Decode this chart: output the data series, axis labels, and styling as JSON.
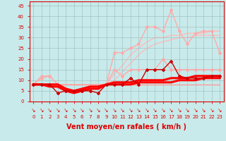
{
  "xlabel": "Vent moyen/en rafales ( km/h )",
  "x": [
    0,
    1,
    2,
    3,
    4,
    5,
    6,
    7,
    8,
    9,
    10,
    11,
    12,
    13,
    14,
    15,
    16,
    17,
    18,
    19,
    20,
    21,
    22,
    23
  ],
  "ylim": [
    0,
    47
  ],
  "yticks": [
    0,
    5,
    10,
    15,
    20,
    25,
    30,
    35,
    40,
    45
  ],
  "bg_color": "#c8eaea",
  "grid_color": "#99bbbb",
  "line_flat_y": [
    8,
    8,
    8,
    8,
    8,
    8,
    8,
    8,
    8,
    8,
    8,
    8,
    8,
    8,
    8,
    8,
    8,
    8,
    8,
    8,
    8,
    8,
    8,
    8
  ],
  "line_flat_color": "#ff9999",
  "line_flat_lw": 1.0,
  "line_diag1_y": [
    8,
    8,
    8,
    8,
    8,
    8,
    8,
    8,
    8,
    8,
    10,
    14,
    18,
    22,
    25,
    27,
    28,
    29,
    30,
    30,
    31,
    31,
    31,
    31
  ],
  "line_diag1_color": "#ffbbbb",
  "line_diag1_lw": 1.0,
  "line_diag2_y": [
    8,
    8,
    8,
    8,
    8,
    8,
    8,
    8,
    8,
    8,
    13,
    17,
    22,
    25,
    28,
    30,
    30,
    31,
    31,
    32,
    32,
    32,
    33,
    33
  ],
  "line_diag2_color": "#ffbbbb",
  "line_diag2_lw": 1.0,
  "line_gust1_y": [
    8,
    11,
    12,
    8,
    5,
    5,
    5,
    7,
    7,
    8,
    15,
    12,
    15,
    15,
    15,
    15,
    20,
    15,
    15,
    15,
    15,
    15,
    15,
    15
  ],
  "line_gust1_color": "#ffaaaa",
  "line_gust1_lw": 1.0,
  "line_gust2_y": [
    8,
    12,
    12,
    8,
    5,
    5,
    5,
    7,
    7,
    8,
    23,
    23,
    25,
    27,
    35,
    35,
    33,
    43,
    33,
    27,
    32,
    33,
    33,
    23
  ],
  "line_gust2_color": "#ffaaaa",
  "line_gust2_lw": 1.0,
  "line_mean1_y": [
    8,
    8,
    7,
    7,
    5,
    4,
    5,
    6,
    6,
    8,
    8,
    8,
    8,
    9,
    9,
    9,
    9,
    9,
    10,
    10,
    10,
    11,
    11,
    11
  ],
  "line_mean1_color": "#ff0000",
  "line_mean1_lw": 2.2,
  "line_mean2_y": [
    8,
    8,
    8,
    8,
    6,
    5,
    6,
    7,
    7,
    8,
    9,
    9,
    9,
    10,
    10,
    10,
    10,
    11,
    11,
    11,
    12,
    12,
    12,
    12
  ],
  "line_mean2_color": "#ff0000",
  "line_mean2_lw": 2.2,
  "line_obs_y": [
    8,
    8,
    8,
    4,
    5,
    5,
    5,
    5,
    4,
    8,
    8,
    8,
    11,
    8,
    15,
    15,
    15,
    19,
    12,
    11,
    11,
    11,
    12,
    12
  ],
  "line_obs_color": "#cc0000",
  "line_obs_lw": 1.0,
  "marker": "D",
  "marker_size": 2.0,
  "xtick_labels": [
    "0",
    "1",
    "2",
    "3",
    "4",
    "5",
    "6",
    "7",
    "8",
    "9",
    "10",
    "11",
    "12",
    "13",
    "14",
    "15",
    "16",
    "17",
    "18",
    "19",
    "20",
    "21",
    "22",
    "23"
  ],
  "tick_color": "#dd0000",
  "tick_fontsize": 5.0,
  "label_fontsize": 7.0,
  "label_color": "#dd0000",
  "label_fontweight": "bold"
}
